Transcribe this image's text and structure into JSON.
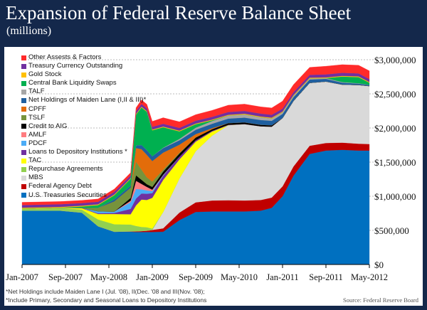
{
  "header": {
    "title": "Expansion of Federal Reserve Balance Sheet",
    "subtitle": "(millions)"
  },
  "footnotes": [
    "*Net Holdings include Maiden Lane I (Jul. '08), II(Dec. '08 and III(Nov. '08);",
    "*Include Primary, Secondary and Seasonal Loans to Depository Institutions"
  ],
  "source": "Source: Federal Reserve Board",
  "chart_data": {
    "type": "area",
    "stacked": true,
    "title": "Expansion of Federal Reserve Balance Sheet",
    "subtitle": "(millions)",
    "xlim": [
      "2007-01",
      "2012-05"
    ],
    "ylim": [
      0,
      3000000
    ],
    "grid": true,
    "legend_placement": "top-left",
    "x_ticks": [
      "Jan-2007",
      "Sep-2007",
      "May-2008",
      "Jan-2009",
      "Sep-2009",
      "May-2010",
      "Jan-2011",
      "Sep-2011",
      "May-2012"
    ],
    "y_ticks": [
      "$0",
      "$500,000",
      "$1,000,000",
      "$1,500,000",
      "$2,000,000",
      "$2,500,000",
      "$3,000,000"
    ],
    "x": [
      "2007-01",
      "2007-08",
      "2007-12",
      "2008-03",
      "2008-06",
      "2008-09",
      "2008-10",
      "2008-11",
      "2008-12",
      "2009-01",
      "2009-03",
      "2009-06",
      "2009-09",
      "2009-12",
      "2010-03",
      "2010-06",
      "2010-09",
      "2010-11",
      "2011-01",
      "2011-03",
      "2011-06",
      "2011-09",
      "2011-12",
      "2012-03",
      "2012-05"
    ],
    "series": [
      {
        "name": "U.S. Treasuries Securities",
        "color": "#0070c0",
        "values": [
          790000,
          790000,
          760000,
          560000,
          480000,
          480000,
          476000,
          476000,
          476000,
          476000,
          480000,
          650000,
          770000,
          777000,
          777000,
          777000,
          790000,
          830000,
          1000000,
          1300000,
          1620000,
          1670000,
          1680000,
          1670000,
          1670000
        ]
      },
      {
        "name": "Federal Agency Debt",
        "color": "#c00000",
        "values": [
          0,
          0,
          0,
          0,
          0,
          5000,
          10000,
          15000,
          20000,
          30000,
          50000,
          110000,
          140000,
          160000,
          165000,
          160000,
          155000,
          150000,
          145000,
          135000,
          120000,
          110000,
          105000,
          100000,
          95000
        ]
      },
      {
        "name": "MBS",
        "color": "#d9d9d9",
        "values": [
          0,
          0,
          0,
          0,
          0,
          0,
          0,
          0,
          0,
          0,
          240000,
          500000,
          750000,
          950000,
          1100000,
          1120000,
          1080000,
          1040000,
          1000000,
          960000,
          920000,
          900000,
          850000,
          860000,
          850000
        ]
      },
      {
        "name": "Repurchase Agreements",
        "color": "#92d050",
        "values": [
          30000,
          40000,
          45000,
          100000,
          110000,
          100000,
          80000,
          60000,
          50000,
          20000,
          0,
          0,
          0,
          0,
          0,
          0,
          0,
          0,
          0,
          0,
          0,
          0,
          0,
          0,
          0
        ]
      },
      {
        "name": "TAC",
        "color": "#ffff00",
        "values": [
          0,
          0,
          20000,
          80000,
          150000,
          150000,
          300000,
          400000,
          400000,
          450000,
          470000,
          280000,
          140000,
          60000,
          0,
          0,
          0,
          0,
          0,
          0,
          0,
          0,
          0,
          0,
          0
        ]
      },
      {
        "name": "Loans to Depository Institutions *",
        "color": "#7030a0",
        "values": [
          1000,
          3000,
          5000,
          10000,
          15000,
          80000,
          100000,
          90000,
          90000,
          70000,
          60000,
          40000,
          20000,
          10000,
          5000,
          0,
          0,
          0,
          0,
          0,
          0,
          0,
          0,
          0,
          0
        ]
      },
      {
        "name": "PDCF",
        "color": "#4bacf6",
        "values": [
          0,
          0,
          0,
          30000,
          20000,
          100000,
          140000,
          60000,
          50000,
          30000,
          10000,
          0,
          0,
          0,
          0,
          0,
          0,
          0,
          0,
          0,
          0,
          0,
          0,
          0,
          0
        ]
      },
      {
        "name": "AMLF",
        "color": "#ff7c80",
        "values": [
          0,
          0,
          0,
          0,
          0,
          20000,
          120000,
          80000,
          50000,
          20000,
          5000,
          0,
          0,
          0,
          0,
          0,
          0,
          0,
          0,
          0,
          0,
          0,
          0,
          0,
          0
        ]
      },
      {
        "name": "Credit to AIG",
        "color": "#000000",
        "values": [
          0,
          0,
          0,
          0,
          0,
          40000,
          80000,
          60000,
          40000,
          40000,
          45000,
          45000,
          40000,
          25000,
          25000,
          25000,
          22000,
          20000,
          0,
          0,
          0,
          0,
          0,
          0,
          0
        ]
      },
      {
        "name": "TSLF",
        "color": "#77933c",
        "values": [
          0,
          0,
          0,
          50000,
          150000,
          150000,
          200000,
          150000,
          100000,
          80000,
          30000,
          10000,
          0,
          0,
          0,
          0,
          0,
          0,
          0,
          0,
          0,
          0,
          0,
          0,
          0
        ]
      },
      {
        "name": "CPFF",
        "color": "#e36c0a",
        "values": [
          0,
          0,
          0,
          0,
          0,
          0,
          200000,
          300000,
          330000,
          300000,
          250000,
          120000,
          50000,
          15000,
          0,
          0,
          0,
          0,
          0,
          0,
          0,
          0,
          0,
          0,
          0
        ]
      },
      {
        "name": "Net Holdings of Maiden Lane (I,II & III)*",
        "color": "#1f5f9f",
        "values": [
          0,
          0,
          0,
          0,
          30000,
          30000,
          40000,
          60000,
          70000,
          70000,
          65000,
          65000,
          64000,
          64000,
          65000,
          70000,
          70000,
          65000,
          60000,
          55000,
          50000,
          40000,
          30000,
          20000,
          15000
        ]
      },
      {
        "name": "TALF",
        "color": "#a6a6a6",
        "values": [
          0,
          0,
          0,
          0,
          0,
          0,
          0,
          0,
          0,
          0,
          5000,
          20000,
          30000,
          40000,
          45000,
          45000,
          40000,
          35000,
          25000,
          20000,
          15000,
          10000,
          8000,
          5000,
          3000
        ]
      },
      {
        "name": "Central Bank Liquidity Swaps",
        "color": "#00b050",
        "values": [
          0,
          0,
          20000,
          40000,
          60000,
          100000,
          450000,
          550000,
          560000,
          380000,
          300000,
          110000,
          50000,
          10000,
          0,
          0,
          0,
          0,
          0,
          0,
          0,
          0,
          80000,
          90000,
          30000
        ]
      },
      {
        "name": "Gold Stock",
        "color": "#ffc000",
        "values": [
          11000,
          11000,
          11000,
          11000,
          11000,
          11000,
          11000,
          11000,
          11000,
          11000,
          11000,
          11000,
          11000,
          11000,
          11000,
          11000,
          11000,
          11000,
          11000,
          11000,
          11000,
          11000,
          11000,
          11000,
          11000
        ]
      },
      {
        "name": "Treasury Currency Outstanding",
        "color": "#7030a0",
        "values": [
          39000,
          39000,
          39000,
          39000,
          39000,
          39000,
          39000,
          40000,
          40000,
          40000,
          40000,
          40000,
          41000,
          41000,
          41000,
          42000,
          42000,
          43000,
          43000,
          43000,
          43000,
          44000,
          44000,
          44000,
          44000
        ]
      },
      {
        "name": "Other Assests & Factors",
        "color": "#ff2a2a",
        "values": [
          40000,
          40000,
          40000,
          40000,
          40000,
          40000,
          50000,
          60000,
          60000,
          80000,
          90000,
          90000,
          90000,
          95000,
          100000,
          100000,
          100000,
          100000,
          110000,
          110000,
          110000,
          120000,
          120000,
          120000,
          120000
        ]
      }
    ]
  }
}
